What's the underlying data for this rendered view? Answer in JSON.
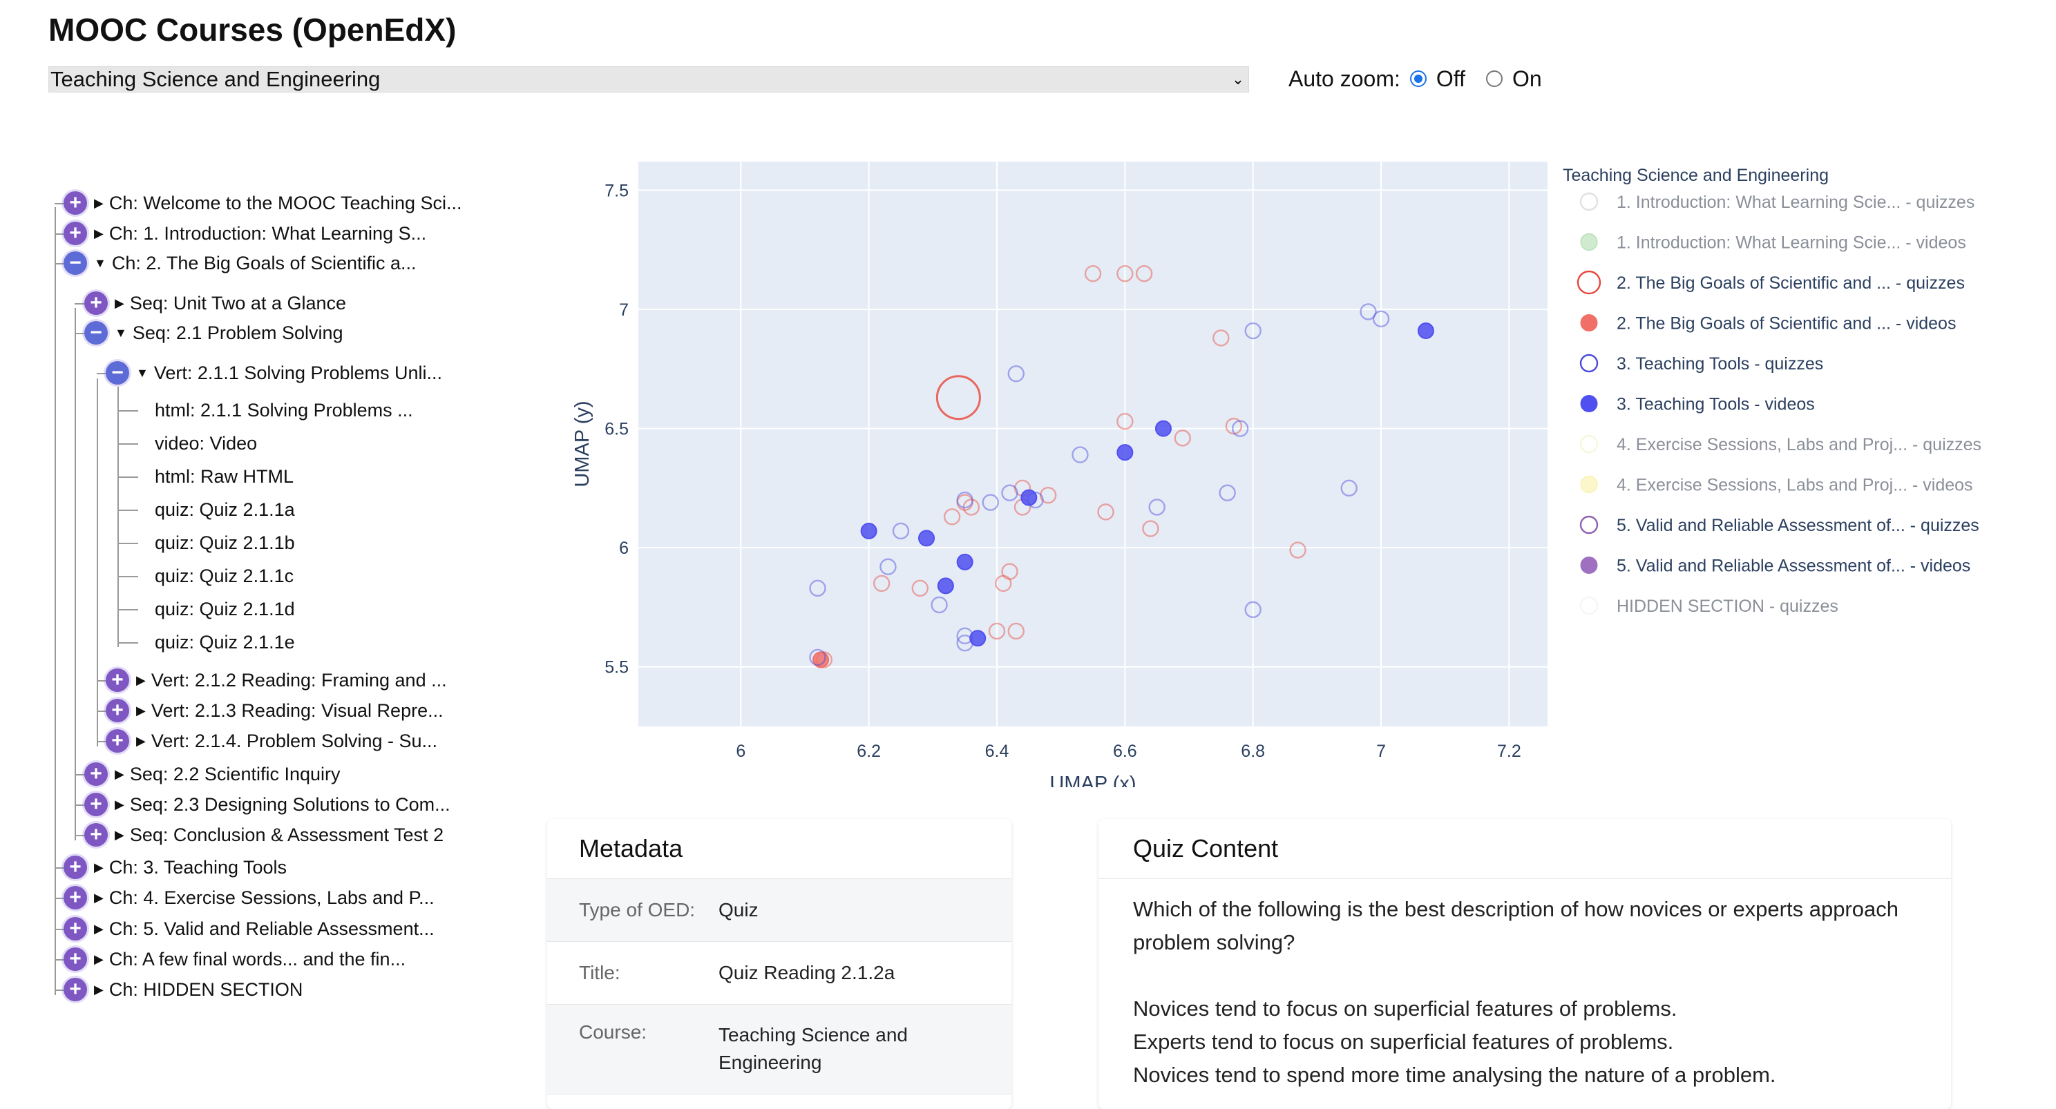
{
  "app": {
    "title": "MOOC Courses (OpenEdX)"
  },
  "controls": {
    "course_selected": "Teaching Science and Engineering",
    "autozoom_label": "Auto zoom:",
    "autozoom_off": "Off",
    "autozoom_on": "On",
    "autozoom_value": "Off"
  },
  "tree": [
    {
      "label": "Ch: Welcome to the MOOC Teaching Sci...",
      "toggle": "plus"
    },
    {
      "label": "Ch: 1. Introduction: What Learning S...",
      "toggle": "plus"
    },
    {
      "label": "Ch: 2. The Big Goals of Scientific a...",
      "toggle": "minus"
    },
    {
      "label": "Seq: Unit Two at a Glance",
      "toggle": "plus"
    },
    {
      "label": "Seq: 2.1 Problem Solving",
      "toggle": "minus"
    },
    {
      "label": "Vert: 2.1.1 Solving Problems Unli...",
      "toggle": "minus"
    },
    {
      "label": "html: 2.1.1 Solving Problems ..."
    },
    {
      "label": "video: Video"
    },
    {
      "label": "html: Raw HTML"
    },
    {
      "label": "quiz: Quiz 2.1.1a"
    },
    {
      "label": "quiz: Quiz 2.1.1b"
    },
    {
      "label": "quiz: Quiz 2.1.1c"
    },
    {
      "label": "quiz: Quiz 2.1.1d"
    },
    {
      "label": "quiz: Quiz 2.1.1e"
    },
    {
      "label": "Vert: 2.1.2 Reading: Framing and ...",
      "toggle": "plus"
    },
    {
      "label": "Vert: 2.1.3 Reading: Visual Repre...",
      "toggle": "plus"
    },
    {
      "label": "Vert: 2.1.4. Problem Solving - Su...",
      "toggle": "plus"
    },
    {
      "label": "Seq: 2.2 Scientific Inquiry",
      "toggle": "plus"
    },
    {
      "label": "Seq: 2.3 Designing Solutions to Com...",
      "toggle": "plus"
    },
    {
      "label": "Seq: Conclusion & Assessment Test 2",
      "toggle": "plus"
    },
    {
      "label": "Ch: 3. Teaching Tools",
      "toggle": "plus"
    },
    {
      "label": "Ch: 4. Exercise Sessions, Labs and P...",
      "toggle": "plus"
    },
    {
      "label": "Ch: 5. Valid and Reliable Assessment...",
      "toggle": "plus"
    },
    {
      "label": "Ch: A few final words... and the fin...",
      "toggle": "plus"
    },
    {
      "label": "Ch: HIDDEN SECTION",
      "toggle": "plus"
    }
  ],
  "chart_data": {
    "type": "scatter",
    "xlabel": "UMAP (x)",
    "ylabel": "UMAP (y)",
    "xlim": [
      5.84,
      7.26
    ],
    "ylim": [
      5.25,
      7.62
    ],
    "xticks": [
      "6",
      "6.2",
      "6.4",
      "6.6",
      "6.8",
      "7",
      "7.2"
    ],
    "xtick_values": [
      6,
      6.2,
      6.4,
      6.6,
      6.8,
      7,
      7.2
    ],
    "yticks": [
      "5.5",
      "6",
      "6.5",
      "7",
      "7.5"
    ],
    "ytick_values": [
      5.5,
      6,
      6.5,
      7,
      7.5
    ],
    "grid": true,
    "legend_title": "Teaching Science and Engineering",
    "legend_placement": "right",
    "series": [
      {
        "name": "1. Introduction: What Learning Scie... - quizzes",
        "color": "#c8c8c8",
        "filled": false,
        "dim": true,
        "points": []
      },
      {
        "name": "1. Introduction: What Learning Scie... - videos",
        "color": "#a8d8a8",
        "filled": true,
        "dim": true,
        "points": []
      },
      {
        "name": "2. The Big Goals of Scientific and ... - quizzes",
        "color": "#e8463a",
        "filled": false,
        "dim": false,
        "points": [
          [
            6.55,
            7.15
          ],
          [
            6.6,
            7.15
          ],
          [
            6.63,
            7.15
          ],
          [
            6.75,
            6.88
          ],
          [
            6.6,
            6.53
          ],
          [
            6.69,
            6.46
          ],
          [
            6.77,
            6.51
          ],
          [
            6.48,
            6.22
          ],
          [
            6.44,
            6.17
          ],
          [
            6.44,
            6.25
          ],
          [
            6.36,
            6.17
          ],
          [
            6.35,
            6.19
          ],
          [
            6.33,
            6.13
          ],
          [
            6.57,
            6.15
          ],
          [
            6.64,
            6.08
          ],
          [
            6.87,
            5.99
          ],
          [
            6.42,
            5.9
          ],
          [
            6.41,
            5.85
          ],
          [
            6.22,
            5.85
          ],
          [
            6.28,
            5.83
          ],
          [
            6.4,
            5.65
          ],
          [
            6.43,
            5.65
          ],
          [
            6.13,
            5.53
          ]
        ]
      },
      {
        "name": "2. The Big Goals of Scientific and ... - videos",
        "color": "#f07068",
        "filled": true,
        "dim": false,
        "points": [
          [
            6.125,
            5.53
          ]
        ]
      },
      {
        "name": "3. Teaching Tools - quizzes",
        "color": "#4a4adc",
        "filled": false,
        "dim": false,
        "points": [
          [
            6.43,
            6.73
          ],
          [
            6.8,
            6.91
          ],
          [
            6.98,
            6.99
          ],
          [
            7.0,
            6.96
          ],
          [
            6.78,
            6.5
          ],
          [
            6.53,
            6.39
          ],
          [
            6.35,
            6.2
          ],
          [
            6.39,
            6.19
          ],
          [
            6.42,
            6.23
          ],
          [
            6.46,
            6.2
          ],
          [
            6.65,
            6.17
          ],
          [
            6.76,
            6.23
          ],
          [
            6.25,
            6.07
          ],
          [
            6.12,
            5.83
          ],
          [
            6.23,
            5.92
          ],
          [
            6.31,
            5.76
          ],
          [
            6.35,
            5.63
          ],
          [
            6.35,
            5.6
          ],
          [
            6.8,
            5.74
          ],
          [
            6.95,
            6.25
          ],
          [
            6.12,
            5.54
          ]
        ]
      },
      {
        "name": "3. Teaching Tools - videos",
        "color": "#5050f0",
        "filled": true,
        "dim": false,
        "points": [
          [
            7.07,
            6.91
          ],
          [
            6.6,
            6.4
          ],
          [
            6.66,
            6.5
          ],
          [
            6.45,
            6.21
          ],
          [
            6.2,
            6.07
          ],
          [
            6.29,
            6.04
          ],
          [
            6.35,
            5.94
          ],
          [
            6.32,
            5.84
          ],
          [
            6.37,
            5.62
          ]
        ]
      },
      {
        "name": "4. Exercise Sessions, Labs and Proj... - quizzes",
        "color": "#f0f0c0",
        "filled": false,
        "dim": true,
        "points": []
      },
      {
        "name": "4. Exercise Sessions, Labs and Proj... - videos",
        "color": "#f8f0a0",
        "filled": true,
        "dim": true,
        "points": []
      },
      {
        "name": "5. Valid and Reliable Assessment of... - quizzes",
        "color": "#9060b0",
        "filled": false,
        "dim": false,
        "points": []
      },
      {
        "name": "5. Valid and Reliable Assessment of... - videos",
        "color": "#a070c0",
        "filled": true,
        "dim": false,
        "points": []
      },
      {
        "name": "HIDDEN SECTION - quizzes",
        "color": "#eeeeee",
        "filled": false,
        "dim": true,
        "points": []
      }
    ],
    "highlighted": {
      "x": 6.34,
      "y": 6.63,
      "series": "2. The Big Goals of Scientific and ... - quizzes"
    }
  },
  "metadata": {
    "title": "Metadata",
    "rows": [
      {
        "key": "Type of OED:",
        "value": "Quiz"
      },
      {
        "key": "Title:",
        "value": "Quiz Reading 2.1.2a"
      },
      {
        "key": "Course:",
        "value": "Teaching Science and Engineering"
      }
    ]
  },
  "quiz": {
    "title": "Quiz Content",
    "question": "Which of the following is the best description of how novices or experts approach problem solving?",
    "options": [
      "Novices tend to focus on superficial features of problems.",
      "Experts tend to focus on superficial features of problems.",
      "Novices tend to spend more time analysing the nature of a problem."
    ]
  }
}
